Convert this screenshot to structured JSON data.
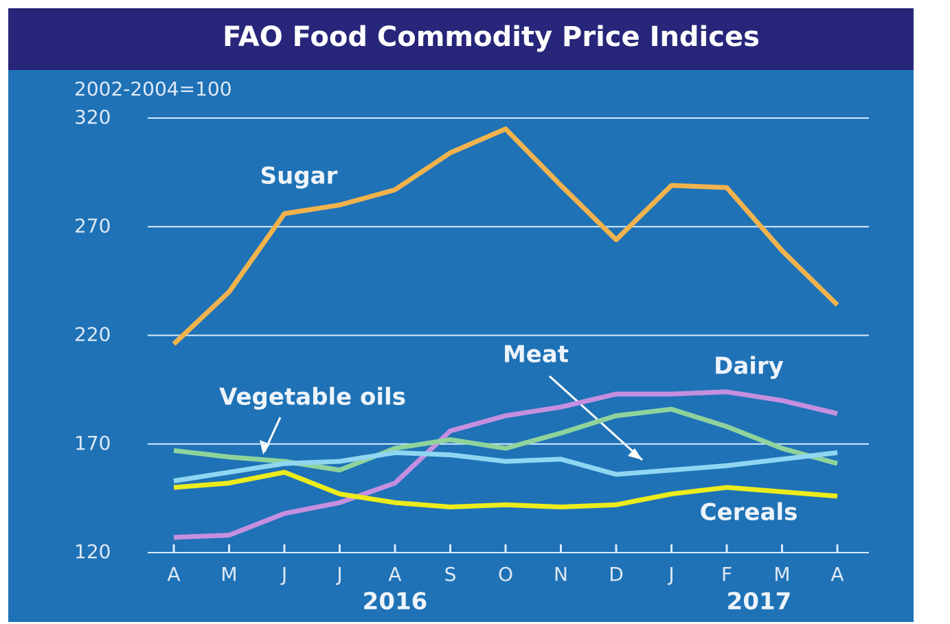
{
  "chart_data": {
    "type": "line",
    "title": "FAO Food Commodity Price Indices",
    "subtitle": "2002-2004=100",
    "categories": [
      "A",
      "M",
      "J",
      "J",
      "A",
      "S",
      "O",
      "N",
      "D",
      "J",
      "F",
      "M",
      "A"
    ],
    "years": [
      "2016",
      "2017"
    ],
    "ylim": [
      120,
      320
    ],
    "yticks": [
      120,
      170,
      220,
      270,
      320
    ],
    "grid": true,
    "series": [
      {
        "name": "Sugar",
        "color": "#f2b34c",
        "values": [
          216,
          240,
          276,
          280,
          287,
          304,
          315,
          289,
          264,
          289,
          288,
          259,
          234
        ]
      },
      {
        "name": "Dairy",
        "color": "#c58fe0",
        "values": [
          127,
          128,
          138,
          143,
          152,
          176,
          183,
          187,
          193,
          193,
          194,
          190,
          184
        ]
      },
      {
        "name": "Vegetable oils",
        "color": "#8fd39c",
        "values": [
          167,
          164,
          162,
          158,
          168,
          172,
          168,
          175,
          183,
          186,
          178,
          168,
          161
        ]
      },
      {
        "name": "Meat",
        "color": "#8fd6f2",
        "values": [
          153,
          157,
          161,
          162,
          166,
          165,
          162,
          163,
          156,
          158,
          160,
          163,
          166
        ]
      },
      {
        "name": "Cereals",
        "color": "#ecec1c",
        "values": [
          150,
          152,
          157,
          147,
          143,
          141,
          142,
          141,
          142,
          147,
          150,
          148,
          146
        ]
      }
    ]
  }
}
